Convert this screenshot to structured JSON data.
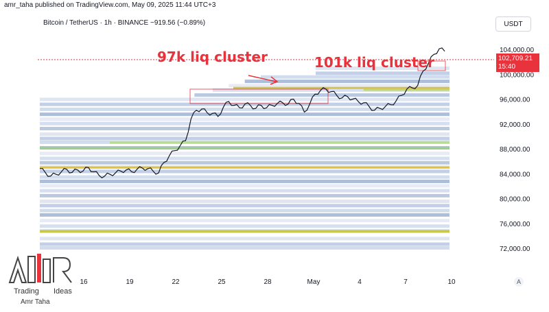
{
  "header": {
    "caption": "amr_taha published on TradingView.com, May 09, 2025 11:44 UTC+3",
    "symbol": "Bitcoin / TetherUS · 1h · BINANCE  −919.56 (−0.89%)",
    "currency": "USDT"
  },
  "annotations": {
    "left": "97k liq cluster",
    "right": "101k liq cluster"
  },
  "price_tag": {
    "price": "102,709.21",
    "time": "15:40"
  },
  "logo": {
    "word1": "Trading",
    "word2": "Ideas",
    "author": "Amr Taha"
  },
  "settings_label": "A",
  "colors": {
    "accent": "#e8323c",
    "price_line": "#131722"
  },
  "chart_data": {
    "type": "line",
    "title": "",
    "xlabel": "",
    "ylabel": "",
    "ylim": [
      70000,
      106000
    ],
    "y_ticks": [
      72000,
      76000,
      80000,
      84000,
      88000,
      92000,
      96000,
      100000,
      104000
    ],
    "y_tick_labels": [
      "72,000.00",
      "76,000.00",
      "80,000.00",
      "84,000.00",
      "88,000.00",
      "92,000.00",
      "96,000.00",
      "100,000.00",
      "104,000.00"
    ],
    "x_tick_labels": [
      "16",
      "19",
      "22",
      "25",
      "28",
      "May",
      "4",
      "7",
      "10"
    ],
    "grid": false,
    "series": [
      {
        "values": [
          84800,
          84200,
          83600,
          83900,
          84300,
          84700,
          84200,
          84600,
          84400,
          85000,
          84300,
          83700,
          83600,
          83900,
          84100,
          84400,
          84600,
          84300,
          84700,
          84900,
          84800,
          84400,
          84100,
          85800,
          86900,
          87700,
          88500,
          89300,
          92800,
          94200,
          94400,
          93800,
          93700,
          93200,
          94700,
          95600,
          95000,
          94600,
          95200,
          95000,
          94500,
          95000,
          94600,
          95000,
          95300,
          95400,
          95200,
          96000,
          95300,
          93900,
          95200,
          96800,
          97400,
          97600,
          97200,
          96600,
          96200,
          96400,
          96000,
          95600,
          95400,
          94800,
          94200,
          94500,
          94800,
          95100,
          95700,
          96600,
          97600,
          97800,
          98200,
          100500,
          101800,
          103200,
          104100,
          103700
        ]
      }
    ],
    "liquidity_bands_prices": [
      72000,
      72600,
      73500,
      74700,
      75500,
      76400,
      77300,
      78000,
      78800,
      79500,
      80400,
      81200,
      82000,
      82700,
      83400,
      84300,
      85000,
      85700,
      86400,
      87200,
      88100,
      89000,
      89600,
      90300,
      91200,
      92000,
      92700,
      93500,
      94300,
      95100,
      95900,
      96600,
      97400,
      98100,
      98800,
      99500,
      100100,
      100900
    ]
  }
}
